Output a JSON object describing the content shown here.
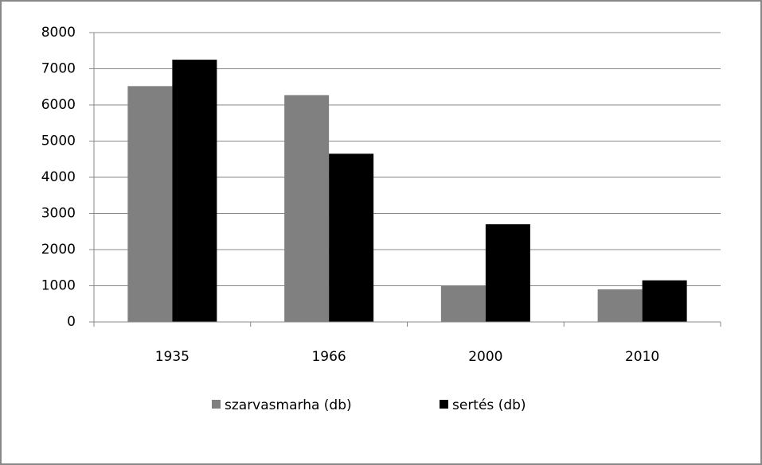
{
  "chart_data": {
    "type": "bar",
    "categories": [
      "1935",
      "1966",
      "2000",
      "2010"
    ],
    "series": [
      {
        "name": "szarvasmarha (db)",
        "color": "#808080",
        "values": [
          6520,
          6270,
          1000,
          900
        ]
      },
      {
        "name": "sertés (db)",
        "color": "#000000",
        "values": [
          7250,
          4650,
          2700,
          1150
        ]
      }
    ],
    "ylim": [
      0,
      8000
    ],
    "yticks": [
      0,
      1000,
      2000,
      3000,
      4000,
      5000,
      6000,
      7000,
      8000
    ],
    "grid": true,
    "legend": "bottom"
  }
}
